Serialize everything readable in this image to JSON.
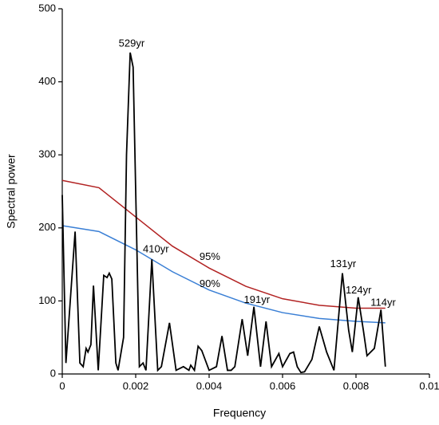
{
  "chart_data": {
    "type": "line",
    "xlabel": "Frequency",
    "ylabel": "Spectral power",
    "xlim": [
      0,
      0.01
    ],
    "xticks": [
      0,
      0.002,
      0.004,
      0.006,
      0.008,
      0.01
    ],
    "ylim": [
      0,
      500
    ],
    "yticks": [
      0,
      100,
      200,
      300,
      400,
      500
    ],
    "grid": false,
    "series": [
      {
        "color": "#b22222",
        "x": [
          0,
          0.001,
          0.002,
          0.003,
          0.004,
          0.005,
          0.006,
          0.007,
          0.008,
          0.0088
        ],
        "values": [
          265,
          255,
          215,
          175,
          145,
          120,
          103,
          94,
          90,
          90
        ]
      },
      {
        "color": "#3a7fd5",
        "x": [
          0,
          0.001,
          0.002,
          0.003,
          0.004,
          0.005,
          0.006,
          0.007,
          0.008,
          0.0088
        ],
        "values": [
          203,
          195,
          170,
          140,
          115,
          97,
          84,
          76,
          72,
          70
        ]
      },
      {
        "color": "#000000",
        "x": [
          0,
          0.0001,
          0.00035,
          0.00048,
          0.00057,
          0.00065,
          0.0007,
          0.00078,
          0.00085,
          0.00098,
          0.00113,
          0.00122,
          0.00128,
          0.00135,
          0.00146,
          0.00152,
          0.00167,
          0.00175,
          0.00185,
          0.00193,
          0.0021,
          0.0022,
          0.00228,
          0.00244,
          0.0026,
          0.0027,
          0.00292,
          0.0031,
          0.0033,
          0.00345,
          0.0035,
          0.0036,
          0.0037,
          0.0038,
          0.004,
          0.0042,
          0.00435,
          0.0045,
          0.0046,
          0.0047,
          0.0049,
          0.00505,
          0.00522,
          0.0054,
          0.00555,
          0.0057,
          0.0059,
          0.006,
          0.0062,
          0.0063,
          0.0064,
          0.0065,
          0.0066,
          0.0068,
          0.007,
          0.0072,
          0.0074,
          0.00763,
          0.0078,
          0.0079,
          0.00806,
          0.0082,
          0.0083,
          0.0085,
          0.00868,
          0.0088
        ],
        "values": [
          245,
          15,
          195,
          15,
          10,
          35,
          30,
          40,
          121,
          5,
          135,
          132,
          138,
          130,
          15,
          5,
          50,
          300,
          440,
          420,
          10,
          15,
          5,
          157,
          5,
          10,
          70,
          5,
          10,
          5,
          12,
          5,
          38,
          32,
          5,
          10,
          52,
          5,
          5,
          10,
          75,
          25,
          92,
          10,
          72,
          10,
          28,
          10,
          28,
          30,
          10,
          2,
          3,
          20,
          65,
          30,
          5,
          138,
          60,
          30,
          105,
          60,
          25,
          35,
          88,
          10
        ]
      }
    ],
    "annotations": [
      {
        "text": "529yr",
        "x": 0.00189,
        "y": 452
      },
      {
        "text": "410yr",
        "x": 0.00255,
        "y": 170
      },
      {
        "text": "95%",
        "x": 0.00402,
        "y": 160
      },
      {
        "text": "90%",
        "x": 0.00402,
        "y": 123
      },
      {
        "text": "191yr",
        "x": 0.0053,
        "y": 101
      },
      {
        "text": "131yr",
        "x": 0.00765,
        "y": 150
      },
      {
        "text": "124yr",
        "x": 0.00807,
        "y": 114
      },
      {
        "text": "114yr",
        "x": 0.00874,
        "y": 97
      }
    ]
  }
}
